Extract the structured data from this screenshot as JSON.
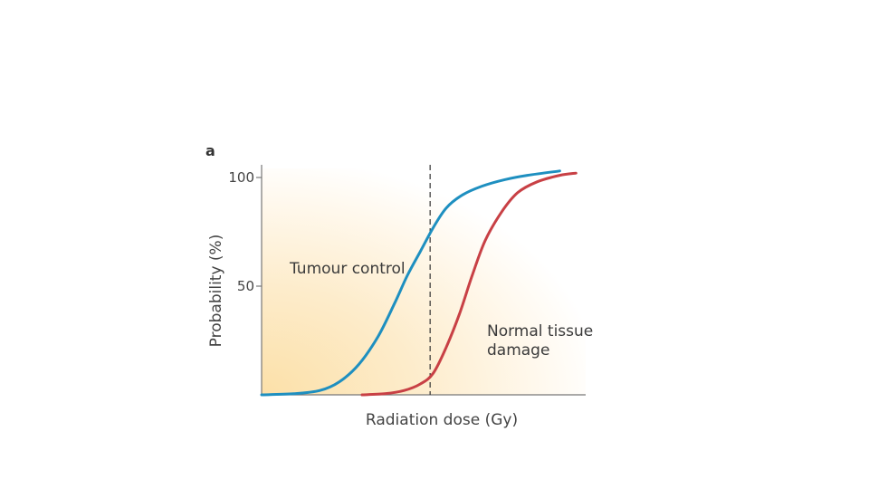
{
  "chart_data": {
    "type": "line",
    "panel_label": "a",
    "xlabel": "Radiation dose (Gy)",
    "ylabel": "Probability (%)",
    "xlim": [
      0,
      100
    ],
    "ylim": [
      0,
      100
    ],
    "y_ticks": [
      {
        "value": 50,
        "label": "50"
      },
      {
        "value": 100,
        "label": "100"
      }
    ],
    "grid": false,
    "reference_line": {
      "x": 52,
      "style": "dashed"
    },
    "series": [
      {
        "name": "Tumour control",
        "color": "#1e8fc0",
        "points": [
          [
            0,
            0
          ],
          [
            10,
            0.5
          ],
          [
            18,
            2
          ],
          [
            24,
            6
          ],
          [
            30,
            14
          ],
          [
            36,
            27
          ],
          [
            41,
            42
          ],
          [
            45,
            55
          ],
          [
            49,
            66
          ],
          [
            53,
            77
          ],
          [
            57,
            86
          ],
          [
            62,
            92
          ],
          [
            68,
            96
          ],
          [
            75,
            99
          ],
          [
            82,
            101
          ],
          [
            92,
            103
          ]
        ]
      },
      {
        "name": "Normal tissue damage",
        "color": "#c84045",
        "points": [
          [
            31,
            0
          ],
          [
            38,
            0.5
          ],
          [
            44,
            2
          ],
          [
            49,
            5
          ],
          [
            53,
            10
          ],
          [
            57,
            22
          ],
          [
            61,
            37
          ],
          [
            65,
            55
          ],
          [
            69,
            71
          ],
          [
            74,
            84
          ],
          [
            79,
            93
          ],
          [
            85,
            98
          ],
          [
            92,
            101
          ],
          [
            97,
            102
          ]
        ]
      }
    ],
    "annotations": [
      {
        "text": "Tumour control",
        "series": "Tumour control"
      },
      {
        "text": "Normal tissue\ndamage",
        "series": "Normal tissue damage"
      }
    ],
    "colors": {
      "background_gradient_from": "#fbe3b4",
      "background_gradient_to": "#ffffff",
      "axis": "#777777",
      "reference_line": "#333333"
    }
  }
}
